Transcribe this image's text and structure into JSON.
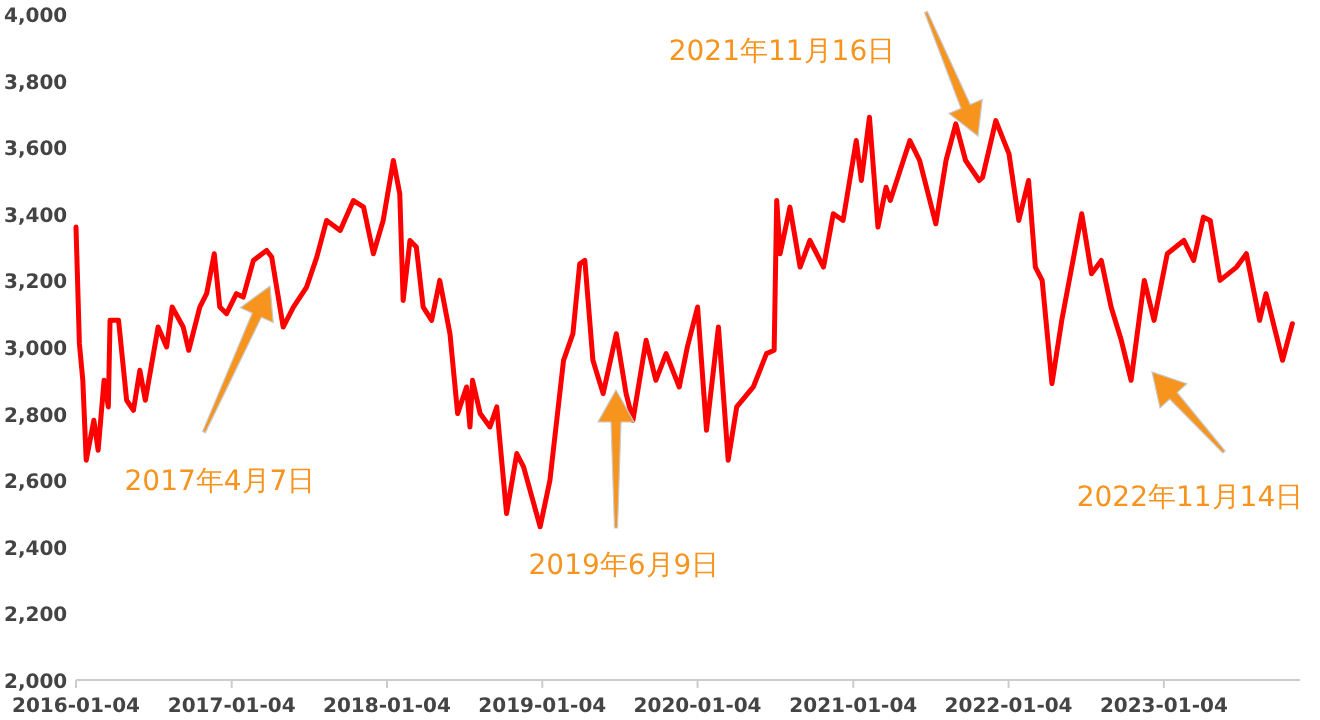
{
  "chart_data": {
    "type": "line",
    "x": [
      "2016-01-04",
      "2016-01-12",
      "2016-01-20",
      "2016-01-28",
      "2016-02-15",
      "2016-02-25",
      "2016-03-10",
      "2016-03-20",
      "2016-03-24",
      "2016-04-13",
      "2016-05-02",
      "2016-05-18",
      "2016-06-02",
      "2016-06-15",
      "2016-07-15",
      "2016-08-04",
      "2016-08-17",
      "2016-09-12",
      "2016-09-25",
      "2016-10-21",
      "2016-11-06",
      "2016-11-24",
      "2016-12-07",
      "2016-12-23",
      "2017-01-15",
      "2017-01-31",
      "2017-02-24",
      "2017-03-27",
      "2017-04-08",
      "2017-05-05",
      "2017-05-29",
      "2017-06-29",
      "2017-07-23",
      "2017-08-15",
      "2017-09-16",
      "2017-10-17",
      "2017-11-10",
      "2017-12-03",
      "2017-12-26",
      "2018-01-19",
      "2018-02-03",
      "2018-02-11",
      "2018-02-27",
      "2018-03-14",
      "2018-03-30",
      "2018-04-19",
      "2018-05-08",
      "2018-06-01",
      "2018-06-19",
      "2018-07-10",
      "2018-07-18",
      "2018-07-24",
      "2018-08-11",
      "2018-09-03",
      "2018-09-19",
      "2018-10-12",
      "2018-11-05",
      "2018-11-21",
      "2018-12-30",
      "2019-01-22",
      "2019-02-23",
      "2019-03-17",
      "2019-04-02",
      "2019-04-14",
      "2019-05-03",
      "2019-05-27",
      "2019-06-27",
      "2019-07-20",
      "2019-08-05",
      "2019-09-05",
      "2019-09-28",
      "2019-10-22",
      "2019-11-22",
      "2019-12-11",
      "2020-01-04",
      "2020-01-25",
      "2020-02-22",
      "2020-03-16",
      "2020-04-05",
      "2020-05-14",
      "2020-06-14",
      "2020-07-02",
      "2020-07-08",
      "2020-07-16",
      "2020-08-08",
      "2020-09-01",
      "2020-09-24",
      "2020-10-26",
      "2020-11-18",
      "2020-12-11",
      "2021-01-11",
      "2021-01-23",
      "2021-02-11",
      "2021-03-03",
      "2021-03-22",
      "2021-04-01",
      "2021-05-17",
      "2021-06-09",
      "2021-07-17",
      "2021-08-10",
      "2021-09-02",
      "2021-09-25",
      "2021-10-27",
      "2021-11-04",
      "2021-12-05",
      "2022-01-05",
      "2022-01-28",
      "2022-02-20",
      "2022-03-08",
      "2022-03-24",
      "2022-04-16",
      "2022-05-09",
      "2022-06-25",
      "2022-07-18",
      "2022-08-10",
      "2022-09-02",
      "2022-09-26",
      "2022-10-19",
      "2022-11-19",
      "2022-12-12",
      "2023-01-12",
      "2023-02-20",
      "2023-03-15",
      "2023-04-07",
      "2023-04-23",
      "2023-05-16",
      "2023-06-24",
      "2023-07-17",
      "2023-08-17",
      "2023-09-01",
      "2023-10-10",
      "2023-11-02"
    ],
    "series": [
      {
        "color": "#ff0000",
        "values": [
          3360,
          3010,
          2900,
          2660,
          2780,
          2690,
          2900,
          2820,
          3080,
          3080,
          2840,
          2810,
          2930,
          2840,
          3060,
          3000,
          3120,
          3060,
          2990,
          3120,
          3160,
          3280,
          3120,
          3100,
          3160,
          3150,
          3260,
          3290,
          3270,
          3060,
          3120,
          3180,
          3270,
          3380,
          3350,
          3440,
          3420,
          3280,
          3380,
          3560,
          3460,
          3140,
          3320,
          3300,
          3120,
          3080,
          3200,
          3040,
          2800,
          2880,
          2760,
          2900,
          2800,
          2760,
          2820,
          2500,
          2680,
          2640,
          2460,
          2600,
          2960,
          3040,
          3250,
          3260,
          2960,
          2860,
          3040,
          2860,
          2780,
          3020,
          2900,
          2980,
          2880,
          3000,
          3120,
          2750,
          3060,
          2660,
          2820,
          2880,
          2980,
          2990,
          3440,
          3280,
          3420,
          3240,
          3320,
          3240,
          3400,
          3380,
          3620,
          3500,
          3690,
          3360,
          3480,
          3440,
          3620,
          3560,
          3370,
          3560,
          3670,
          3560,
          3500,
          3510,
          3680,
          3580,
          3380,
          3500,
          3240,
          3200,
          2890,
          3080,
          3400,
          3220,
          3260,
          3120,
          3020,
          2900,
          3200,
          3080,
          3280,
          3320,
          3260,
          3390,
          3380,
          3200,
          3240,
          3280,
          3080,
          3160,
          2960,
          3070
        ]
      }
    ],
    "xlim": [
      "2016-01-04",
      "2023-11-20"
    ],
    "xticks": [
      "2016-01-04",
      "2017-01-04",
      "2018-01-04",
      "2019-01-04",
      "2020-01-04",
      "2021-01-04",
      "2022-01-04",
      "2023-01-04"
    ],
    "ylim": [
      2000,
      4000
    ],
    "yticks": [
      {
        "value": 2000,
        "label": "2,000"
      },
      {
        "value": 2200,
        "label": "2,200"
      },
      {
        "value": 2400,
        "label": "2,400"
      },
      {
        "value": 2600,
        "label": "2,600"
      },
      {
        "value": 2800,
        "label": "2,800"
      },
      {
        "value": 3000,
        "label": "3,000"
      },
      {
        "value": 3200,
        "label": "3,200"
      },
      {
        "value": 3400,
        "label": "3,400"
      },
      {
        "value": 3600,
        "label": "3,600"
      },
      {
        "value": 3800,
        "label": "3,800"
      },
      {
        "value": 4000,
        "label": "4,000"
      }
    ],
    "annotations": [
      "2017年4月7日",
      "2019年6月9日",
      "2021年11月16日",
      "2022年11月14日"
    ]
  }
}
